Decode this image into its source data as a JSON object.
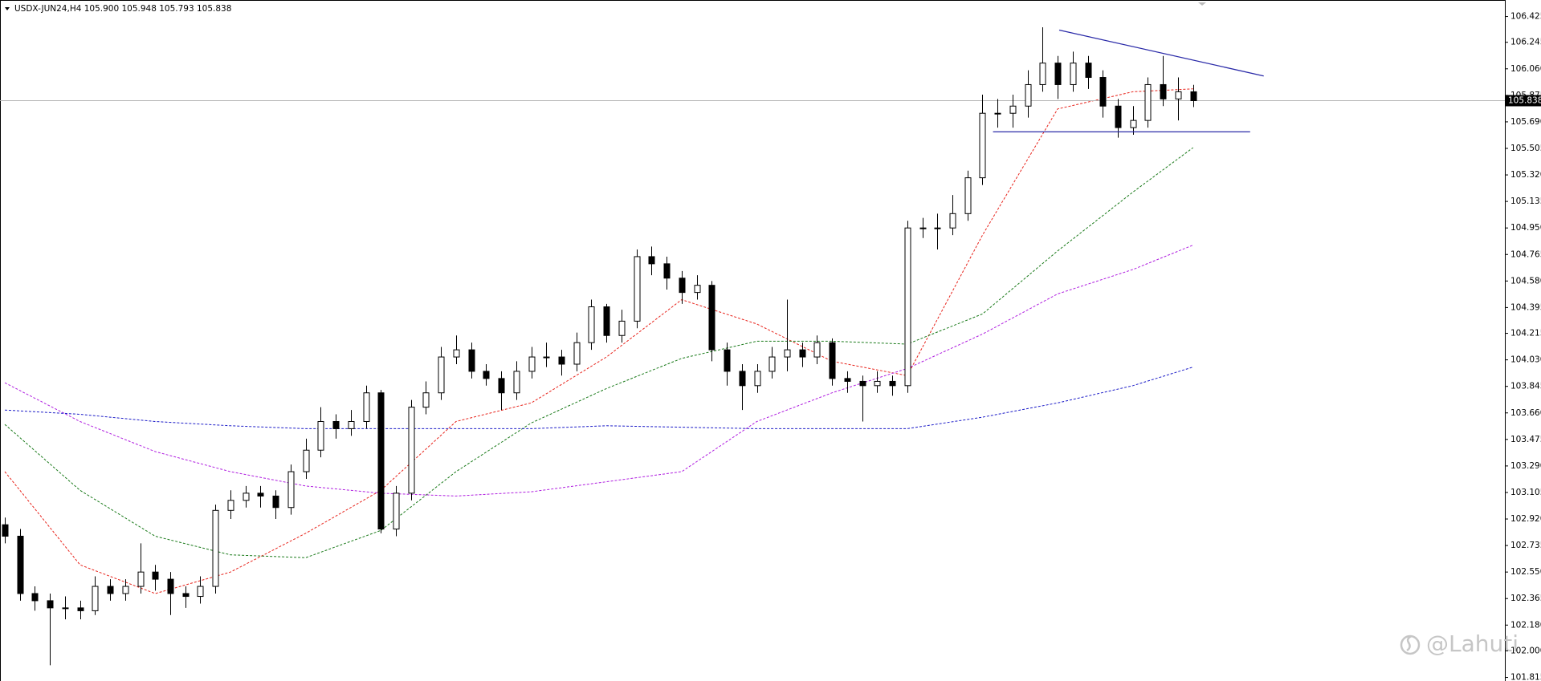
{
  "chart_data": {
    "type": "candlestick",
    "title": "USDX-JUN24,H4  105.900 105.948 105.793 105.838",
    "watermark": "@Lahuti",
    "current_price": 105.838,
    "ylim": [
      101.79,
      106.54
    ],
    "yticks": [
      106.425,
      106.245,
      {
        "value": 106.06,
        "label": "106.060"
      },
      105.875,
      {
        "value": 105.69,
        "label": "105.690"
      },
      105.505,
      {
        "value": 105.32,
        "label": "105.320"
      },
      105.135,
      {
        "value": 104.95,
        "label": "104.950"
      },
      104.765,
      {
        "value": 104.58,
        "label": "104.580"
      },
      104.395,
      104.215,
      {
        "value": 104.03,
        "label": "104.030"
      },
      103.845,
      {
        "value": 103.66,
        "label": "103.660"
      },
      103.475,
      {
        "value": 103.29,
        "label": "103.290"
      },
      103.105,
      {
        "value": 102.92,
        "label": "102.920"
      },
      102.735,
      {
        "value": 102.55,
        "label": "102.550"
      },
      102.365,
      {
        "value": 102.18,
        "label": "102.180"
      },
      {
        "value": 102.0,
        "label": "102.000"
      },
      101.815
    ],
    "open": [
      102.88,
      102.8,
      102.4,
      102.35,
      102.3,
      102.3,
      102.28,
      102.45,
      102.4,
      102.45,
      102.55,
      102.5,
      102.4,
      102.38,
      102.45,
      102.98,
      103.05,
      103.1,
      103.08,
      103.0,
      103.25,
      103.4,
      103.6,
      103.55,
      103.6,
      103.8,
      102.85,
      103.1,
      103.7,
      103.8,
      104.05,
      104.1,
      103.95,
      103.9,
      103.8,
      103.95,
      104.05,
      104.05,
      104.0,
      104.15,
      104.4,
      104.2,
      104.3,
      104.75,
      104.7,
      104.6,
      104.5,
      104.55,
      104.1,
      103.95,
      103.85,
      103.95,
      104.05,
      104.1,
      104.05,
      104.15,
      103.9,
      103.88,
      103.85,
      103.88,
      103.85,
      104.95,
      104.95,
      104.95,
      105.05,
      105.3,
      105.75,
      105.75,
      105.8,
      105.95,
      106.1,
      105.95,
      106.1,
      106.0,
      105.8,
      105.65,
      105.7,
      105.95,
      105.85,
      105.9
    ],
    "high": [
      102.93,
      102.85,
      102.45,
      102.4,
      102.38,
      102.35,
      102.52,
      102.5,
      102.5,
      102.75,
      102.6,
      102.55,
      102.45,
      102.52,
      103.02,
      103.12,
      103.15,
      103.15,
      103.12,
      103.3,
      103.48,
      103.7,
      103.65,
      103.68,
      103.85,
      103.82,
      103.15,
      103.75,
      103.88,
      104.12,
      104.2,
      104.15,
      104.0,
      103.95,
      104.02,
      104.12,
      104.15,
      104.1,
      104.22,
      104.45,
      104.42,
      104.38,
      104.8,
      104.82,
      104.75,
      104.65,
      104.62,
      104.58,
      104.15,
      104.0,
      104.0,
      104.12,
      104.45,
      104.15,
      104.2,
      104.18,
      103.95,
      103.92,
      103.95,
      103.92,
      105.0,
      105.02,
      105.05,
      105.18,
      105.35,
      105.88,
      105.85,
      105.88,
      106.05,
      106.35,
      106.15,
      106.18,
      106.15,
      106.05,
      105.85,
      105.8,
      106.0,
      106.15,
      106.0,
      105.948
    ],
    "low": [
      102.75,
      102.35,
      102.28,
      101.9,
      102.22,
      102.22,
      102.25,
      102.35,
      102.35,
      102.4,
      102.42,
      102.25,
      102.3,
      102.33,
      102.4,
      102.92,
      103.0,
      103.0,
      102.92,
      102.95,
      103.2,
      103.35,
      103.48,
      103.5,
      103.55,
      102.82,
      102.8,
      103.05,
      103.65,
      103.75,
      104.0,
      103.9,
      103.85,
      103.68,
      103.75,
      103.9,
      103.98,
      103.92,
      103.95,
      104.1,
      104.15,
      104.15,
      104.25,
      104.62,
      104.52,
      104.42,
      104.45,
      104.02,
      103.85,
      103.68,
      103.8,
      103.9,
      103.95,
      103.98,
      104.0,
      103.85,
      103.8,
      103.6,
      103.8,
      103.78,
      103.8,
      104.88,
      104.8,
      104.9,
      105.0,
      105.25,
      105.65,
      105.65,
      105.72,
      105.9,
      105.85,
      105.9,
      105.92,
      105.72,
      105.58,
      105.6,
      105.65,
      105.8,
      105.7,
      105.793
    ],
    "close": [
      102.8,
      102.4,
      102.35,
      102.3,
      102.3,
      102.28,
      102.45,
      102.4,
      102.45,
      102.55,
      102.5,
      102.4,
      102.38,
      102.45,
      102.98,
      103.05,
      103.1,
      103.08,
      103.0,
      103.25,
      103.4,
      103.6,
      103.55,
      103.6,
      103.8,
      102.85,
      103.1,
      103.7,
      103.8,
      104.05,
      104.1,
      103.95,
      103.9,
      103.8,
      103.95,
      104.05,
      104.05,
      104.0,
      104.15,
      104.4,
      104.2,
      104.3,
      104.75,
      104.7,
      104.6,
      104.5,
      104.55,
      104.1,
      103.95,
      103.85,
      103.95,
      104.05,
      104.1,
      104.05,
      104.15,
      103.9,
      103.88,
      103.85,
      103.88,
      103.85,
      104.95,
      104.95,
      104.95,
      105.05,
      105.3,
      105.75,
      105.75,
      105.8,
      105.95,
      106.1,
      105.95,
      106.1,
      106.0,
      105.8,
      105.65,
      105.7,
      105.95,
      105.85,
      105.9,
      105.838
    ],
    "overlays": [
      {
        "color": "#e8241c",
        "x": [
          0,
          5,
          10,
          15,
          20,
          25,
          30,
          35,
          40,
          45,
          50,
          55,
          60,
          65,
          70,
          75,
          79
        ],
        "values": [
          103.25,
          102.6,
          102.4,
          102.55,
          102.82,
          103.12,
          103.6,
          103.73,
          104.05,
          104.45,
          104.28,
          104.02,
          103.92,
          104.9,
          105.78,
          105.9,
          105.92
        ]
      },
      {
        "color": "#1a7a1a",
        "x": [
          0,
          5,
          10,
          15,
          20,
          25,
          30,
          35,
          40,
          45,
          50,
          55,
          60,
          65,
          70,
          75,
          79
        ],
        "values": [
          103.58,
          103.12,
          102.8,
          102.67,
          102.65,
          102.84,
          103.25,
          103.59,
          103.83,
          104.04,
          104.16,
          104.16,
          104.14,
          104.35,
          104.79,
          105.2,
          105.51
        ]
      },
      {
        "color": "#b01ee0",
        "x": [
          0,
          5,
          10,
          15,
          20,
          25,
          30,
          35,
          40,
          45,
          50,
          55,
          60,
          65,
          70,
          75,
          79
        ],
        "values": [
          103.87,
          103.6,
          103.39,
          103.25,
          103.15,
          103.1,
          103.08,
          103.11,
          103.18,
          103.25,
          103.6,
          103.8,
          103.97,
          104.21,
          104.49,
          104.66,
          104.83
        ]
      },
      {
        "color": "#1c1cc8",
        "x": [
          0,
          5,
          10,
          15,
          20,
          25,
          30,
          35,
          40,
          45,
          50,
          55,
          60,
          65,
          70,
          75,
          79
        ],
        "values": [
          103.68,
          103.65,
          103.6,
          103.57,
          103.55,
          103.55,
          103.55,
          103.55,
          103.57,
          103.56,
          103.55,
          103.55,
          103.55,
          103.63,
          103.73,
          103.85,
          103.98
        ]
      }
    ],
    "trendlines": [
      {
        "color": "#2a2aa8",
        "x": [
          70.1,
          83.7
        ],
        "values": [
          106.33,
          106.01
        ]
      },
      {
        "color": "#2a2aa8",
        "x": [
          65.7,
          82.8
        ],
        "values": [
          105.62,
          105.62
        ]
      }
    ]
  }
}
